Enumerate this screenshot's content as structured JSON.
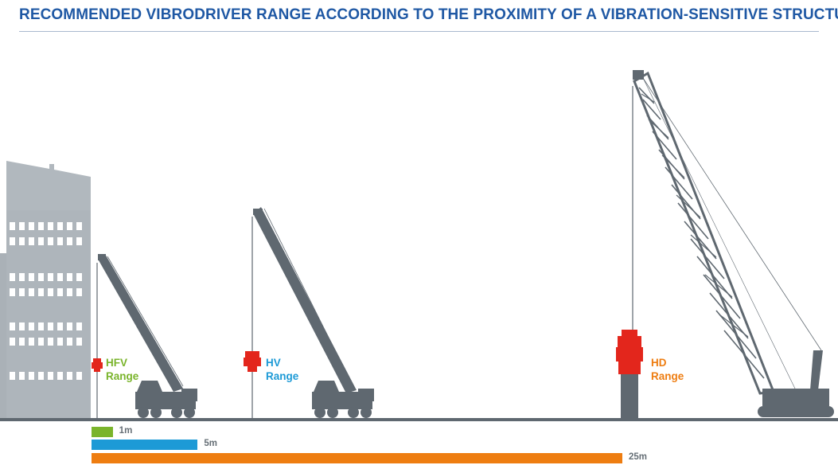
{
  "title": "RECOMMENDED VIBRODRIVER RANGE ACCORDING TO THE PROXIMITY OF A VIBRATION-SENSITIVE STRUCTURE",
  "colors": {
    "title": "#1f58a4",
    "hfv": "#7ab42b",
    "hv": "#1d9ad6",
    "hd": "#ee7d11",
    "machine": "#5f6870",
    "vibro": "#e3261c",
    "building": "#aeb5bb"
  },
  "labels": {
    "hfv": {
      "name": "HFV",
      "range": "Range"
    },
    "hv": {
      "name": "HV",
      "range": "Range"
    },
    "hd": {
      "name": "HD",
      "range": "Range"
    }
  },
  "ranges": [
    {
      "label": "1m",
      "value": 1,
      "color": "#7ab42b"
    },
    {
      "label": "5m",
      "value": 5,
      "color": "#1d9ad6"
    },
    {
      "label": "25m",
      "value": 25,
      "color": "#ee7d11"
    }
  ]
}
